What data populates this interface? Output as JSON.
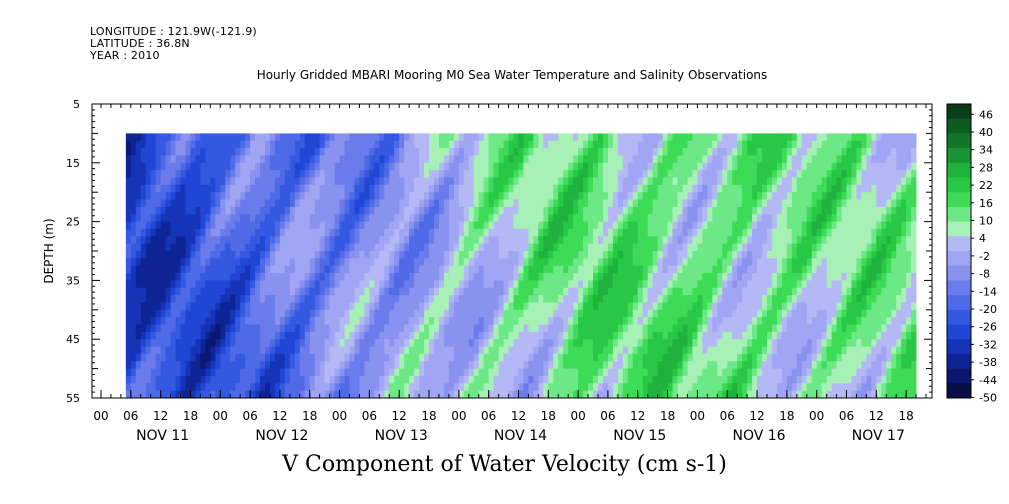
{
  "header": {
    "longitude": "LONGITUDE : 121.9W(-121.9)",
    "latitude": "LATITUDE : 36.8N",
    "year": "YEAR : 2010"
  },
  "chart_data": {
    "type": "heatmap",
    "title": "Hourly Gridded MBARI Mooring M0 Sea Water Temperature and Salinity Observations",
    "subtitle": "V Component of Water Velocity (cm s-1)",
    "ylabel": "DEPTH (m)",
    "ylim": [
      5,
      55
    ],
    "y_inverted": true,
    "y_ticks": [
      5,
      15,
      25,
      35,
      45,
      55
    ],
    "data_depth_range": [
      10,
      55
    ],
    "x_hour_ticks": [
      "00",
      "06",
      "12",
      "18",
      "00",
      "06",
      "12",
      "18",
      "00",
      "06",
      "12",
      "18",
      "00",
      "06",
      "12",
      "18",
      "00",
      "06",
      "12",
      "18",
      "00",
      "06",
      "12",
      "18",
      "00",
      "06",
      "12",
      "18"
    ],
    "x_days": [
      "NOV 11",
      "NOV 12",
      "NOV 13",
      "NOV 14",
      "NOV 15",
      "NOV 16",
      "NOV 17"
    ],
    "data_start_hour": 5,
    "data_end_hour": 164,
    "colorbar": {
      "labels": [
        "46",
        "40",
        "34",
        "28",
        "22",
        "16",
        "10",
        "4",
        "-2",
        "-8",
        "-14",
        "-20",
        "-26",
        "-32",
        "-38",
        "-44",
        "-50"
      ],
      "colors": [
        "#0a3d1a",
        "#0e5c22",
        "#13772b",
        "#189434",
        "#1fb23c",
        "#28c846",
        "#3ddb56",
        "#6de886",
        "#a7f0b6",
        "#b4b9f6",
        "#a0a6f3",
        "#8a92ef",
        "#6a7ceb",
        "#4f6ae6",
        "#3458e0",
        "#2046d6",
        "#1634b8",
        "#0f2494",
        "#0a1670",
        "#080c48"
      ]
    },
    "day_profile": [
      {
        "day": "NOV 11",
        "value": -28
      },
      {
        "day": "NOV 12",
        "value": -22
      },
      {
        "day": "NOV 13",
        "value": -12
      },
      {
        "day": "NOV 14",
        "value": 3
      },
      {
        "day": "NOV 15",
        "value": 11
      },
      {
        "day": "NOV 16",
        "value": 12
      },
      {
        "day": "NOV 17",
        "value": 8
      }
    ]
  }
}
